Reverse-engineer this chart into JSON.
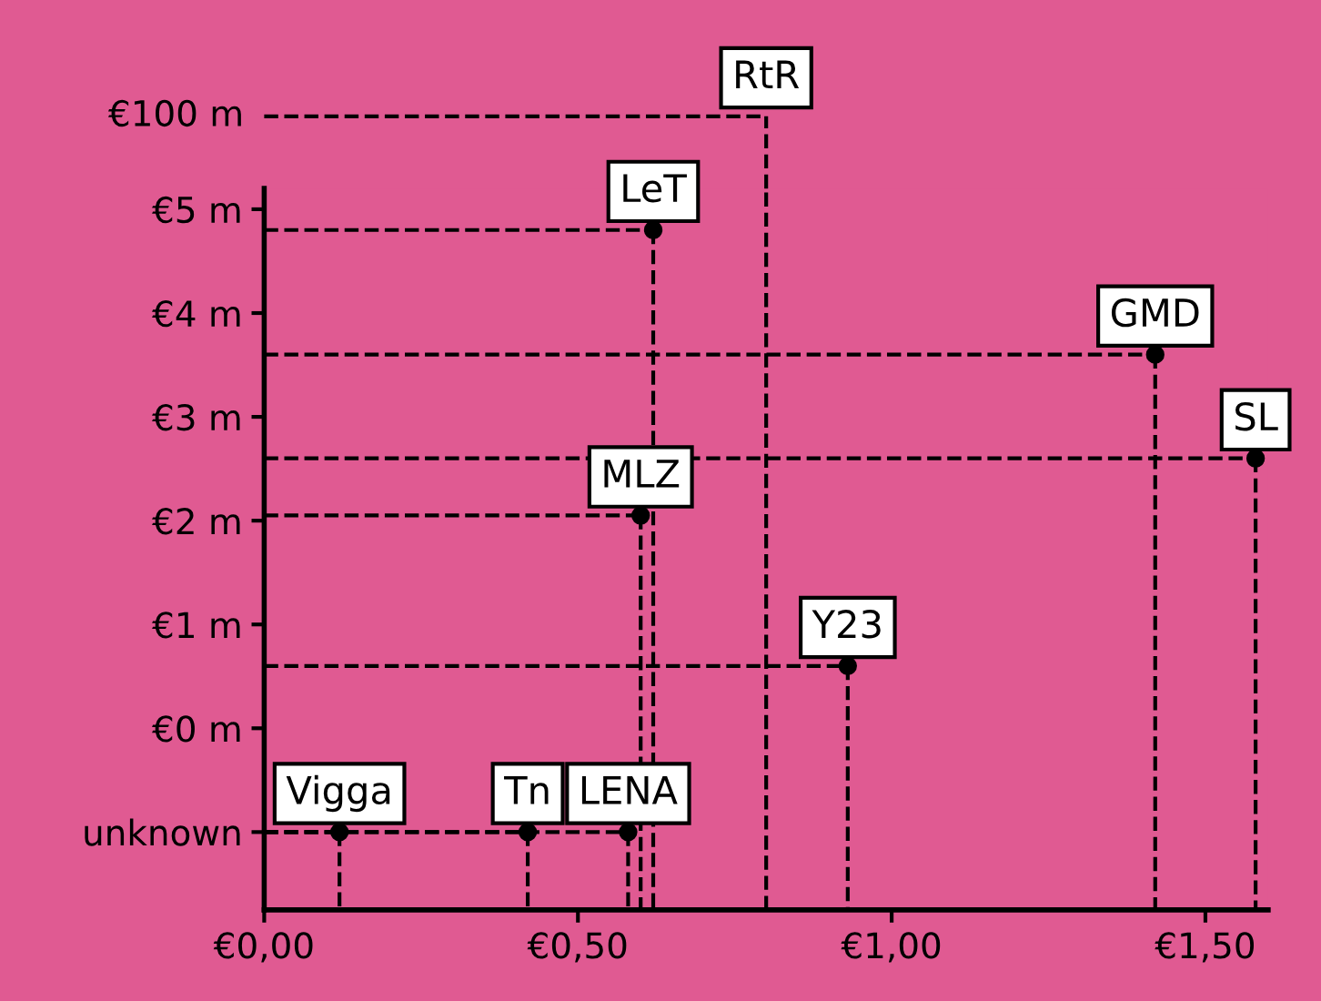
{
  "chart_data": {
    "type": "scatter",
    "color": "#000000",
    "marker": "circle",
    "line_style": "dashed",
    "x": [
      null,
      0.62,
      1.42,
      1.58,
      0.6,
      0.93,
      0.12,
      0.42,
      0.58
    ],
    "values": [
      null,
      4.8,
      3.6,
      2.6,
      2.05,
      0.6,
      -1,
      -1,
      -1
    ],
    "value_labels": [
      "RtR",
      "LeT",
      "GMD",
      "SL",
      "MLZ",
      "Y23",
      "Vigga",
      "Tn",
      "LENA"
    ],
    "annotations": [
      "€100 m"
    ],
    "xlim": [
      0,
      1.6
    ],
    "ylim": [
      -1.75,
      5.2
    ],
    "xticks": [
      {
        "value": 0,
        "label": "€0,00"
      },
      {
        "value": 0.5,
        "label": "€0,50"
      },
      {
        "value": 1,
        "label": "€1,00"
      },
      {
        "value": 1.5,
        "label": "€1,50"
      }
    ],
    "yticks": [
      {
        "value": -1,
        "label": "unknown"
      },
      {
        "value": 0,
        "label": "€0 m"
      },
      {
        "value": 1,
        "label": "€1 m"
      },
      {
        "value": 2,
        "label": "€2 m"
      },
      {
        "value": 3,
        "label": "€3 m"
      },
      {
        "value": 4,
        "label": "€4 m"
      },
      {
        "value": 5,
        "label": "€5 m"
      }
    ],
    "grid": false,
    "legend": false
  }
}
